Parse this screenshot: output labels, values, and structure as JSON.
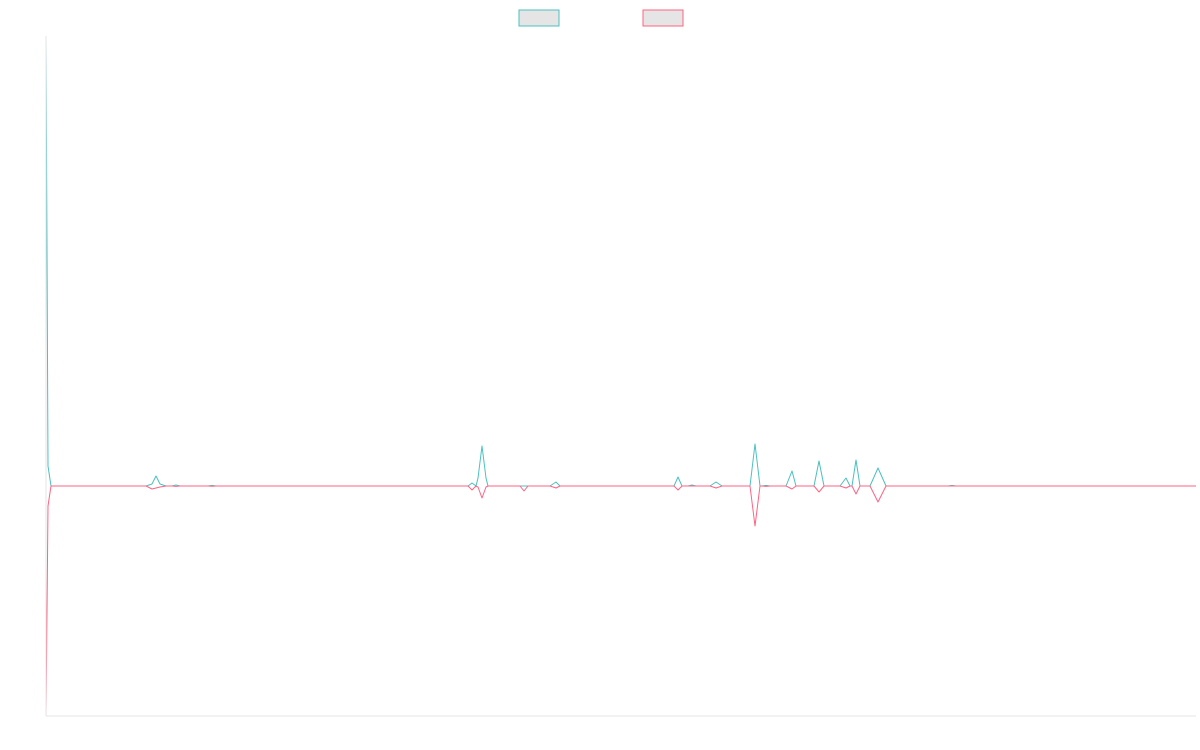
{
  "chart_data": {
    "type": "line",
    "title": "",
    "xlabel": "",
    "ylabel": "",
    "legend": "top-center",
    "grid": false,
    "x_range": [
      0,
      1150
    ],
    "y_range": [
      -230,
      450
    ],
    "series": [
      {
        "color": "#4bc0c0",
        "fill": "#e5e5e5",
        "points": [
          [
            0,
            450
          ],
          [
            2,
            20
          ],
          [
            5,
            0
          ],
          [
            100,
            0
          ],
          [
            106,
            2
          ],
          [
            110,
            10
          ],
          [
            114,
            2
          ],
          [
            120,
            0
          ],
          [
            126,
            0
          ],
          [
            130,
            1
          ],
          [
            134,
            0
          ],
          [
            162,
            0
          ],
          [
            166,
            0.6
          ],
          [
            170,
            0
          ],
          [
            422,
            0
          ],
          [
            426,
            3
          ],
          [
            430,
            0
          ],
          [
            432,
            8
          ],
          [
            436,
            40
          ],
          [
            440,
            8
          ],
          [
            442,
            0
          ],
          [
            504,
            0
          ],
          [
            510,
            4
          ],
          [
            514,
            0
          ],
          [
            628,
            0
          ],
          [
            632,
            9
          ],
          [
            636,
            0
          ],
          [
            642,
            0
          ],
          [
            646,
            1
          ],
          [
            650,
            0
          ],
          [
            664,
            0
          ],
          [
            670,
            4
          ],
          [
            676,
            0
          ],
          [
            704,
            0
          ],
          [
            709,
            42
          ],
          [
            714,
            0
          ],
          [
            716,
            0
          ],
          [
            720,
            0.6
          ],
          [
            724,
            0
          ],
          [
            740,
            0
          ],
          [
            746,
            15
          ],
          [
            750,
            0
          ],
          [
            768,
            0
          ],
          [
            773,
            25
          ],
          [
            778,
            0
          ],
          [
            794,
            0
          ],
          [
            800,
            8
          ],
          [
            804,
            0
          ],
          [
            806,
            0
          ],
          [
            810,
            26
          ],
          [
            814,
            0
          ],
          [
            824,
            0
          ],
          [
            832,
            18
          ],
          [
            840,
            0
          ],
          [
            902,
            0
          ],
          [
            906,
            0.6
          ],
          [
            910,
            0
          ],
          [
            1150,
            0
          ]
        ]
      },
      {
        "color": "#ff6384",
        "fill": "#e5e5e5",
        "points": [
          [
            0,
            -230
          ],
          [
            2,
            -20
          ],
          [
            5,
            0
          ],
          [
            100,
            0
          ],
          [
            106,
            -3
          ],
          [
            110,
            -2
          ],
          [
            114,
            -1
          ],
          [
            120,
            0
          ],
          [
            126,
            0
          ],
          [
            130,
            -0.4
          ],
          [
            134,
            0
          ],
          [
            162,
            0
          ],
          [
            166,
            -0.3
          ],
          [
            170,
            0
          ],
          [
            422,
            0
          ],
          [
            426,
            -4
          ],
          [
            430,
            0
          ],
          [
            432,
            -1
          ],
          [
            436,
            -12
          ],
          [
            440,
            -1
          ],
          [
            442,
            0
          ],
          [
            474,
            0
          ],
          [
            478,
            -5
          ],
          [
            482,
            0
          ],
          [
            504,
            0
          ],
          [
            510,
            -2
          ],
          [
            514,
            0
          ],
          [
            628,
            0
          ],
          [
            632,
            -4
          ],
          [
            636,
            0
          ],
          [
            664,
            0
          ],
          [
            670,
            -2
          ],
          [
            676,
            0
          ],
          [
            704,
            0
          ],
          [
            709,
            -40
          ],
          [
            714,
            0
          ],
          [
            716,
            0
          ],
          [
            720,
            -0.4
          ],
          [
            724,
            0
          ],
          [
            740,
            0
          ],
          [
            746,
            -3
          ],
          [
            750,
            0
          ],
          [
            768,
            0
          ],
          [
            773,
            -6
          ],
          [
            778,
            0
          ],
          [
            794,
            0
          ],
          [
            800,
            -2
          ],
          [
            804,
            0
          ],
          [
            806,
            0
          ],
          [
            810,
            -8
          ],
          [
            814,
            0
          ],
          [
            824,
            0
          ],
          [
            832,
            -16
          ],
          [
            840,
            0
          ],
          [
            1150,
            0
          ]
        ]
      }
    ]
  }
}
